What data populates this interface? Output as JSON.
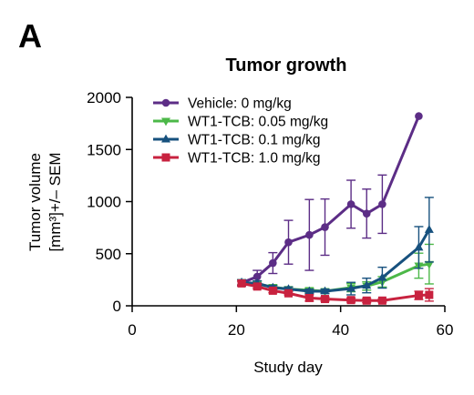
{
  "figure": {
    "panel_label": "A"
  },
  "chart_data": {
    "type": "line",
    "title": "Tumor growth",
    "xlabel": "Study day",
    "ylabel_line1": "Tumor volume",
    "ylabel_line2": "[mm³]+/– SEM",
    "xlim": [
      0,
      60
    ],
    "ylim": [
      0,
      2000
    ],
    "xticks": [
      0,
      20,
      40,
      60
    ],
    "yticks": [
      0,
      500,
      1000,
      1500,
      2000
    ],
    "grid": false,
    "legend_position": "top-left",
    "series": [
      {
        "name": "Vehicle: 0 mg/kg",
        "color": "#5c2d86",
        "marker": "circle",
        "x": [
          21,
          24,
          27,
          30,
          34,
          37,
          42,
          45,
          48,
          55
        ],
        "y": [
          220,
          280,
          410,
          610,
          680,
          755,
          975,
          885,
          975,
          1820
        ],
        "err": [
          30,
          60,
          100,
          210,
          340,
          270,
          230,
          235,
          280,
          0
        ]
      },
      {
        "name": "WT1-TCB: 0.05 mg/kg",
        "color": "#4cb848",
        "marker": "triangle-down",
        "x": [
          21,
          24,
          27,
          30,
          34,
          37,
          42,
          45,
          48,
          55,
          57
        ],
        "y": [
          225,
          210,
          180,
          160,
          150,
          140,
          175,
          190,
          230,
          385,
          400
        ],
        "err": [
          25,
          25,
          20,
          20,
          20,
          20,
          40,
          40,
          50,
          120,
          190
        ]
      },
      {
        "name": "WT1-TCB: 0.1 mg/kg",
        "color": "#17517e",
        "marker": "triangle-up",
        "x": [
          21,
          24,
          27,
          30,
          34,
          37,
          42,
          45,
          48,
          55,
          57
        ],
        "y": [
          225,
          215,
          175,
          160,
          140,
          140,
          165,
          195,
          270,
          560,
          730
        ],
        "err": [
          25,
          25,
          20,
          20,
          20,
          20,
          60,
          70,
          100,
          200,
          310
        ]
      },
      {
        "name": "WT1-TCB: 1.0 mg/kg",
        "color": "#c8223f",
        "marker": "square",
        "x": [
          21,
          24,
          27,
          30,
          34,
          37,
          42,
          45,
          48,
          55,
          57
        ],
        "y": [
          215,
          185,
          145,
          120,
          75,
          65,
          55,
          50,
          50,
          100,
          105
        ],
        "err": [
          20,
          20,
          20,
          15,
          30,
          20,
          20,
          20,
          15,
          40,
          60
        ]
      }
    ]
  }
}
